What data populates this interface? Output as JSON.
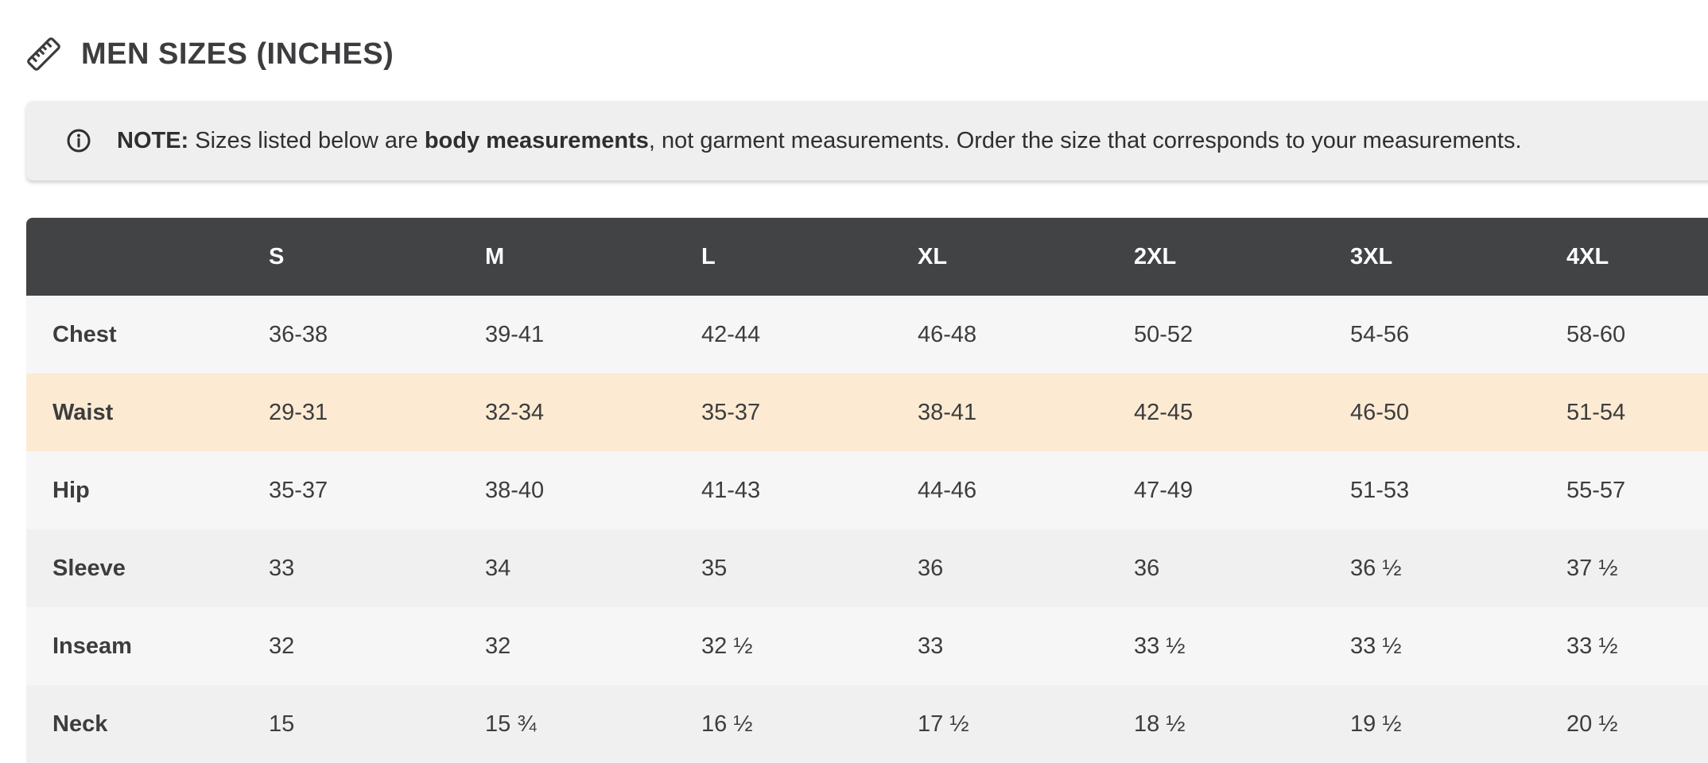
{
  "title": "MEN SIZES (INCHES)",
  "note": {
    "prefix": "NOTE:",
    "text_before_bold": " Sizes listed below are ",
    "bold_text": "body measurements",
    "text_after_bold": ", not garment measurements. Order the size that corresponds to your measurements."
  },
  "table": {
    "sizes": [
      "S",
      "M",
      "L",
      "XL",
      "2XL",
      "3XL",
      "4XL"
    ],
    "rows": [
      {
        "label": "Chest",
        "values": [
          "36-38",
          "39-41",
          "42-44",
          "46-48",
          "50-52",
          "54-56",
          "58-60"
        ]
      },
      {
        "label": "Waist",
        "values": [
          "29-31",
          "32-34",
          "35-37",
          "38-41",
          "42-45",
          "46-50",
          "51-54"
        ]
      },
      {
        "label": "Hip",
        "values": [
          "35-37",
          "38-40",
          "41-43",
          "44-46",
          "47-49",
          "51-53",
          "55-57"
        ]
      },
      {
        "label": "Sleeve",
        "values": [
          "33",
          "34",
          "35",
          "36",
          "36",
          "36 ½",
          "37 ½"
        ]
      },
      {
        "label": "Inseam",
        "values": [
          "32",
          "32",
          "32 ½",
          "33",
          "33 ½",
          "33 ½",
          "33 ½"
        ]
      },
      {
        "label": "Neck",
        "values": [
          "15",
          "15 ¾",
          "16 ½",
          "17 ½",
          "18 ½",
          "19 ½",
          "20 ½"
        ]
      }
    ],
    "highlighted_row": "Waist"
  },
  "colors": {
    "header_bg": "#424345",
    "highlight_row": "#fcebd2",
    "note_bg": "#efefef"
  },
  "icons": {
    "title": "ruler-icon",
    "note": "info-icon"
  }
}
